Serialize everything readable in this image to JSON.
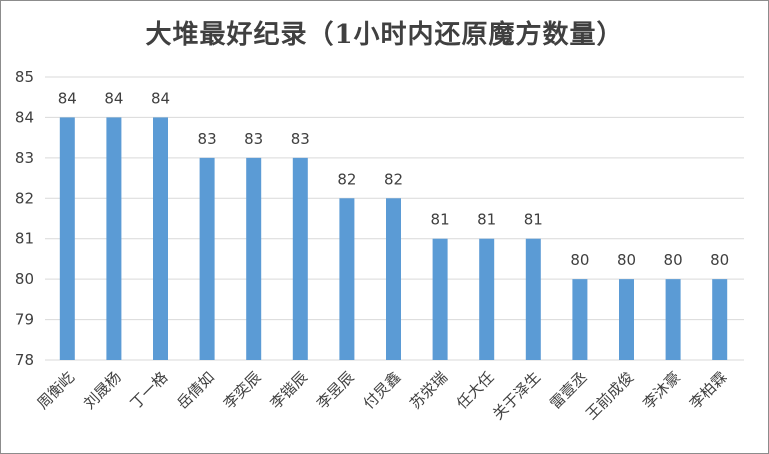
{
  "chart_data": {
    "type": "bar",
    "title": "大堆最好纪录（1小时内还原魔方数量）",
    "xlabel": "",
    "ylabel": "",
    "categories": [
      "周衡屹",
      "刘晟杨",
      "丁一格",
      "岳倩如",
      "李奕辰",
      "李锴辰",
      "李昱辰",
      "付炅鑫",
      "苏泶瑞",
      "任大任",
      "关于泽生",
      "雷壹丞",
      "王前成俊",
      "李沐豪",
      "李柏霖"
    ],
    "values": [
      84,
      84,
      84,
      83,
      83,
      83,
      82,
      82,
      81,
      81,
      81,
      80,
      80,
      80,
      80
    ],
    "ylim": [
      78,
      85
    ],
    "yticks": [
      78,
      79,
      80,
      81,
      82,
      83,
      84,
      85
    ],
    "grid": true,
    "legend": "none",
    "bar_color": "#5b9bd5",
    "grid_color": "#d9d9d9",
    "data_labels": true
  }
}
